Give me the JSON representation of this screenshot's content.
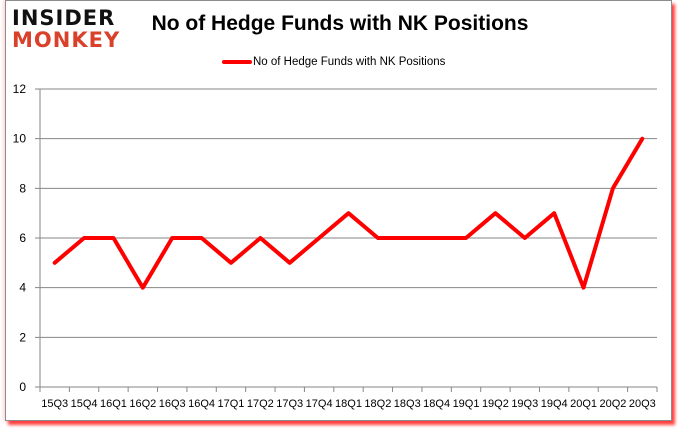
{
  "brand": {
    "line1": "INSIDER",
    "line2": "MONKEY",
    "line1_color": "#111111",
    "line2_color": "#d9412b"
  },
  "chart_data": {
    "type": "line",
    "title": "No of Hedge Funds with NK Positions",
    "xlabel": "",
    "ylabel": "",
    "categories": [
      "15Q3",
      "15Q4",
      "16Q1",
      "16Q2",
      "16Q3",
      "16Q4",
      "17Q1",
      "17Q2",
      "17Q3",
      "17Q4",
      "18Q1",
      "18Q2",
      "18Q3",
      "18Q4",
      "19Q1",
      "19Q2",
      "19Q3",
      "19Q4",
      "20Q1",
      "20Q2",
      "20Q3"
    ],
    "series": [
      {
        "name": "No of Hedge Funds with NK Positions",
        "color": "#ff0000",
        "values": [
          5,
          6,
          6,
          4,
          6,
          6,
          5,
          6,
          5,
          6,
          7,
          6,
          6,
          6,
          6,
          7,
          6,
          7,
          4,
          8,
          10
        ]
      }
    ],
    "ylim": [
      0,
      12
    ],
    "yticks": [
      0,
      2,
      4,
      6,
      8,
      10,
      12
    ],
    "grid": true,
    "legend_position": "top"
  }
}
